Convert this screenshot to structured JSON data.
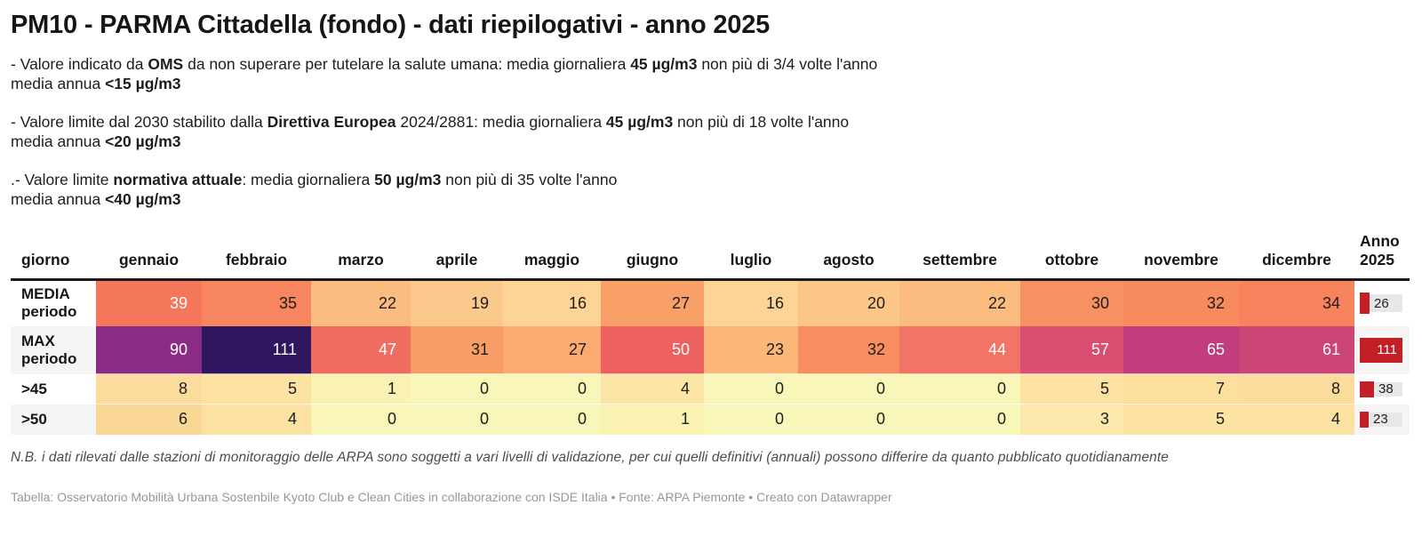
{
  "title": "PM10 - PARMA Cittadella (fondo) - dati riepilogativi - anno 2025",
  "intro": {
    "paragraphs": [
      {
        "lines": [
          [
            {
              "t": "- Valore indicato da "
            },
            {
              "t": "OMS",
              "b": true
            },
            {
              "t": " da non superare per tutelare la salute umana: media giornaliera "
            },
            {
              "t": "45 µg/m3",
              "b": true
            },
            {
              "t": " non più di 3/4 volte l'anno"
            }
          ],
          [
            {
              "t": "media annua "
            },
            {
              "t": "<15 µg/m3",
              "b": true
            }
          ]
        ]
      },
      {
        "lines": [
          [
            {
              "t": "- Valore limite dal 2030 stabilito dalla "
            },
            {
              "t": "Direttiva Europea",
              "b": true
            },
            {
              "t": " 2024/2881: media giornaliera "
            },
            {
              "t": "45 µg/m3",
              "b": true
            },
            {
              "t": " non più di 18 volte l'anno"
            }
          ],
          [
            {
              "t": "media annua "
            },
            {
              "t": "<20 µg/m3",
              "b": true
            }
          ]
        ]
      },
      {
        "lines": [
          [
            {
              "t": ".- Valore limite "
            },
            {
              "t": "normativa attuale",
              "b": true
            },
            {
              "t": ": media giornaliera "
            },
            {
              "t": "50 µg/m3",
              "b": true
            },
            {
              "t": " non più di 35 volte l'anno"
            }
          ],
          [
            {
              "t": "media annua "
            },
            {
              "t": "<40 µg/m3",
              "b": true
            }
          ]
        ]
      }
    ]
  },
  "chart_data": {
    "type": "table",
    "title": "PM10 - PARMA Cittadella (fondo) - dati riepilogativi - anno 2025",
    "columns": [
      "giorno",
      "gennaio",
      "febbraio",
      "marzo",
      "aprile",
      "maggio",
      "giugno",
      "luglio",
      "agosto",
      "settembre",
      "ottobre",
      "novembre",
      "dicembre",
      "Anno 2025"
    ],
    "anno_header_lines": [
      "Anno",
      "2025"
    ],
    "anno_max": 111,
    "bar_color": "#c21f26",
    "track_color": "#e7e7e7",
    "rows": [
      {
        "id": "media-periodo",
        "label_lines": [
          "MEDIA",
          "periodo"
        ],
        "tall": true,
        "values": [
          39,
          35,
          22,
          19,
          16,
          27,
          16,
          20,
          22,
          30,
          32,
          34
        ],
        "anno": 26,
        "colors": [
          "#f4775b",
          "#f68560",
          "#fbbc7f",
          "#fcc98c",
          "#fdd496",
          "#f9a069",
          "#fdd496",
          "#fcc689",
          "#fbbc7f",
          "#f89161",
          "#f78a5e",
          "#f6835c"
        ],
        "white_text": [
          0
        ]
      },
      {
        "id": "max-periodo",
        "label_lines": [
          "MAX",
          "periodo"
        ],
        "tall": true,
        "values": [
          90,
          111,
          47,
          31,
          27,
          50,
          23,
          32,
          44,
          57,
          65,
          61
        ],
        "anno": 111,
        "colors": [
          "#8a2c85",
          "#2e175e",
          "#f06c61",
          "#f99d67",
          "#fbab72",
          "#ed6260",
          "#fbb678",
          "#f88d60",
          "#f17466",
          "#d94f72",
          "#c13d7d",
          "#cc4577"
        ],
        "white_text": [
          0,
          1,
          2,
          5,
          8,
          9,
          10,
          11
        ]
      },
      {
        "id": "gt45",
        "label_lines": [
          ">45"
        ],
        "tall": false,
        "values": [
          8,
          5,
          1,
          0,
          0,
          4,
          0,
          0,
          0,
          5,
          7,
          8
        ],
        "anno": 38,
        "colors": [
          "#fcdc9c",
          "#fce3a4",
          "#faf2b3",
          "#f9f6ba",
          "#f9f6ba",
          "#fbe6a8",
          "#f9f6ba",
          "#f9f6ba",
          "#f9f6ba",
          "#fce3a4",
          "#fcde9f",
          "#fcdc9c"
        ],
        "white_text": []
      },
      {
        "id": "gt50",
        "label_lines": [
          ">50"
        ],
        "tall": false,
        "values": [
          6,
          4,
          0,
          0,
          0,
          1,
          0,
          0,
          0,
          3,
          5,
          4
        ],
        "anno": 23,
        "colors": [
          "#fbd795",
          "#fbe2a2",
          "#f9f6ba",
          "#f9f6ba",
          "#f9f6ba",
          "#faf2b3",
          "#f9f6ba",
          "#f9f6ba",
          "#f9f6ba",
          "#fce8aa",
          "#fce3a4",
          "#fbe2a2"
        ],
        "white_text": []
      }
    ]
  },
  "footer": {
    "note": "N.B. i dati rilevati dalle stazioni di monitoraggio delle ARPA sono soggetti a vari livelli di validazione, per cui quelli definitivi (annuali) possono differire da quanto pubblicato quotidianamente",
    "attribution": "Tabella: Osservatorio Mobilità Urbana Sostenbile Kyoto Club e Clean Cities in collaborazione con ISDE Italia • Fonte: ARPA Piemonte • Creato con Datawrapper"
  }
}
